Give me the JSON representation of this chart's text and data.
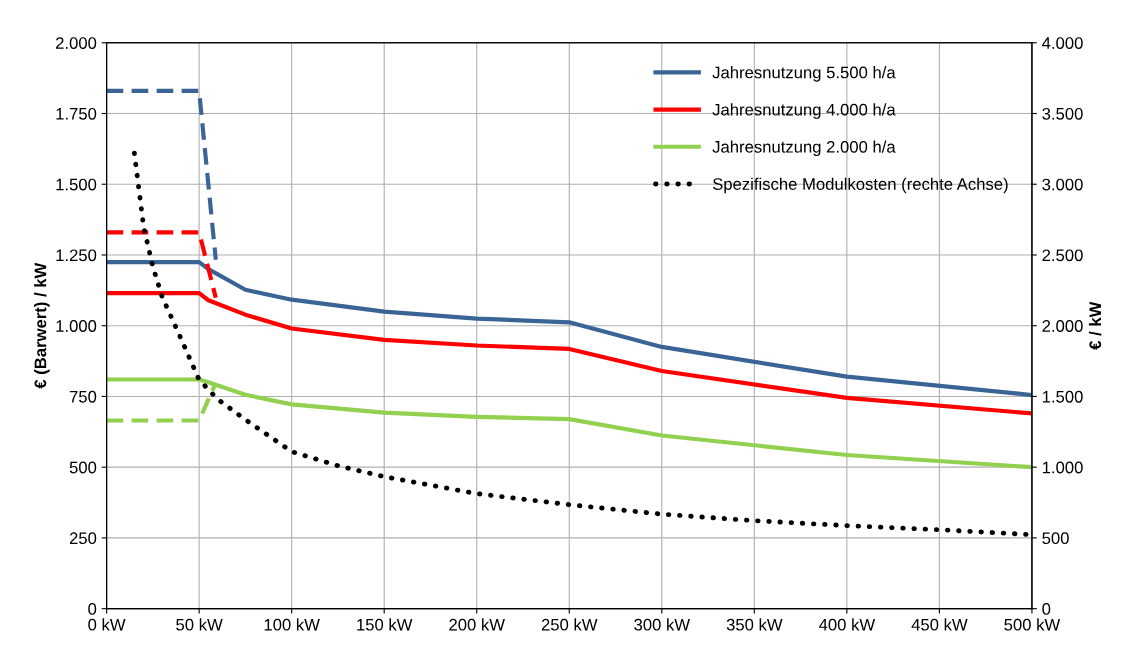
{
  "chart_data": {
    "type": "line",
    "ylabel": "€ (Barwert) / kW",
    "y2label": "€ / kW",
    "xlim": [
      0,
      500
    ],
    "xticks": [
      {
        "value": 0,
        "label": "0 kW"
      },
      {
        "value": 50,
        "label": "50 kW"
      },
      {
        "value": 100,
        "label": "100 kW"
      },
      {
        "value": 150,
        "label": "150 kW"
      },
      {
        "value": 200,
        "label": "200 kW"
      },
      {
        "value": 250,
        "label": "250 kW"
      },
      {
        "value": 300,
        "label": "300 kW"
      },
      {
        "value": 350,
        "label": "350 kW"
      },
      {
        "value": 400,
        "label": "400 kW"
      },
      {
        "value": 450,
        "label": "450 kW"
      },
      {
        "value": 500,
        "label": "500 kW"
      }
    ],
    "ylim": [
      0,
      2000
    ],
    "yticks": [
      {
        "value": 0,
        "label": "0"
      },
      {
        "value": 250,
        "label": "250"
      },
      {
        "value": 500,
        "label": "500"
      },
      {
        "value": 750,
        "label": "750"
      },
      {
        "value": 1000,
        "label": "1.000"
      },
      {
        "value": 1250,
        "label": "1.250"
      },
      {
        "value": 1500,
        "label": "1.500"
      },
      {
        "value": 1750,
        "label": "1.750"
      },
      {
        "value": 2000,
        "label": "2.000"
      }
    ],
    "y2lim": [
      0,
      4000
    ],
    "y2ticks": [
      {
        "value": 0,
        "label": "0"
      },
      {
        "value": 500,
        "label": "500"
      },
      {
        "value": 1000,
        "label": "1.000"
      },
      {
        "value": 1500,
        "label": "1.500"
      },
      {
        "value": 2000,
        "label": "2.000"
      },
      {
        "value": 2500,
        "label": "2.500"
      },
      {
        "value": 3000,
        "label": "3.000"
      },
      {
        "value": 3500,
        "label": "3.500"
      },
      {
        "value": 4000,
        "label": "4.000"
      }
    ],
    "grid": true,
    "legend": "top right",
    "marker": "none",
    "series": [
      {
        "name": "Jahresnutzung 5.500 h/a",
        "color": "#3a6496",
        "line_style": "solid",
        "x": [
          0,
          50,
          55,
          75,
          100,
          150,
          200,
          250,
          300,
          400,
          500
        ],
        "values": [
          1225,
          1225,
          1200,
          1127,
          1092,
          1050,
          1025,
          1012,
          925,
          820,
          755
        ]
      },
      {
        "name": "Jahresnutzung 4.000 h/a",
        "color": "#ff0000",
        "line_style": "solid",
        "x": [
          0,
          50,
          55,
          75,
          100,
          150,
          200,
          250,
          300,
          400,
          500
        ],
        "values": [
          1115,
          1115,
          1090,
          1039,
          990,
          950,
          930,
          918,
          840,
          745,
          690
        ]
      },
      {
        "name": "Jahresnutzung 2.000 h/a",
        "color": "#92d050",
        "line_style": "solid",
        "x": [
          0,
          50,
          55,
          75,
          100,
          150,
          200,
          250,
          300,
          400,
          500
        ],
        "values": [
          810,
          810,
          800,
          756,
          722,
          693,
          678,
          670,
          612,
          543,
          500
        ]
      },
      {
        "name": "Spezifische Modulkosten (rechte Achse)",
        "color": "#000000",
        "line_style": "dotted",
        "axis": "y2",
        "x": [
          15,
          20,
          25,
          30,
          40,
          50,
          60,
          75,
          100,
          125,
          150,
          200,
          250,
          300,
          350,
          400,
          450,
          500
        ],
        "values": [
          3220,
          2700,
          2417,
          2205,
          1915,
          1618,
          1480,
          1336,
          1110,
          1010,
          933,
          813,
          735,
          668,
          622,
          587,
          558,
          523
        ]
      },
      {
        "color": "#3a6496",
        "line_style": "dashed",
        "x": [
          0,
          50,
          59
        ],
        "values": [
          1830,
          1830,
          1233
        ]
      },
      {
        "color": "#ff0000",
        "line_style": "dashed",
        "x": [
          0,
          50,
          59
        ],
        "values": [
          1330,
          1330,
          1099
        ]
      },
      {
        "color": "#92d050",
        "line_style": "dashed",
        "x": [
          0,
          50,
          59
        ],
        "values": [
          665,
          665,
          798
        ]
      }
    ]
  }
}
